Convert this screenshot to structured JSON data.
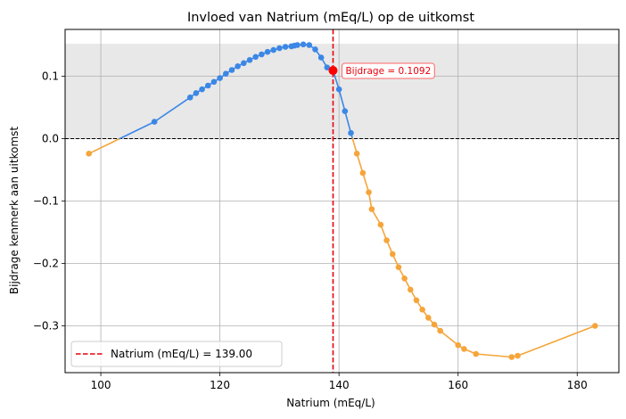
{
  "chart_data": {
    "type": "line",
    "title": "Invloed van Natrium (mEq/L) op de uitkomst",
    "xlabel": "Natrium (mEq/L)",
    "ylabel": "Bijdrage kenmerk aan uitkomst",
    "xlim": [
      94,
      187
    ],
    "ylim": [
      -0.375,
      0.175
    ],
    "x_ticks": [
      100,
      120,
      140,
      160,
      180
    ],
    "y_ticks": [
      -0.3,
      -0.2,
      -0.1,
      0.0,
      0.1
    ],
    "x_tick_labels": [
      "100",
      "120",
      "140",
      "160",
      "180"
    ],
    "y_tick_labels": [
      "−0.3",
      "−0.2",
      "−0.1",
      "0.0",
      "0.1"
    ],
    "grid": true,
    "shaded_band": [
      0,
      0.152
    ],
    "zero_line": 0,
    "positive_color": "#3b87e6",
    "negative_color": "#f5a53a",
    "band_color": "#e8e8e8",
    "marker_color": "#ff0000",
    "series": [
      {
        "x": [
          98,
          109,
          115,
          116,
          117,
          118,
          119,
          120,
          121,
          122,
          123,
          124,
          125,
          126,
          127,
          128,
          129,
          130,
          131,
          132,
          132.5,
          133,
          134,
          135,
          136,
          137,
          138,
          139,
          140,
          141,
          142,
          143,
          144,
          145,
          145.5,
          147,
          148,
          149,
          150,
          151,
          152,
          153,
          154,
          155,
          156,
          157,
          160,
          161,
          163,
          169,
          170,
          183
        ],
        "y": [
          -0.024,
          0.027,
          0.066,
          0.073,
          0.079,
          0.085,
          0.091,
          0.097,
          0.104,
          0.11,
          0.116,
          0.121,
          0.126,
          0.131,
          0.135,
          0.139,
          0.142,
          0.145,
          0.147,
          0.148,
          0.149,
          0.15,
          0.151,
          0.15,
          0.143,
          0.13,
          0.114,
          0.1092,
          0.079,
          0.044,
          0.009,
          -0.024,
          -0.055,
          -0.086,
          -0.113,
          -0.138,
          -0.163,
          -0.185,
          -0.206,
          -0.224,
          -0.242,
          -0.259,
          -0.274,
          -0.287,
          -0.298,
          -0.308,
          -0.331,
          -0.337,
          -0.345,
          -0.35,
          -0.348,
          -0.3
        ]
      }
    ],
    "reference_line": {
      "x": 139,
      "label": "Natrium (mEq/L) = 139.00",
      "color": "#e8000b"
    },
    "highlight_point": {
      "x": 139,
      "y": 0.1092,
      "label": "Bijdrage = 0.1092"
    },
    "legend": {
      "position": "bottom-left"
    }
  }
}
